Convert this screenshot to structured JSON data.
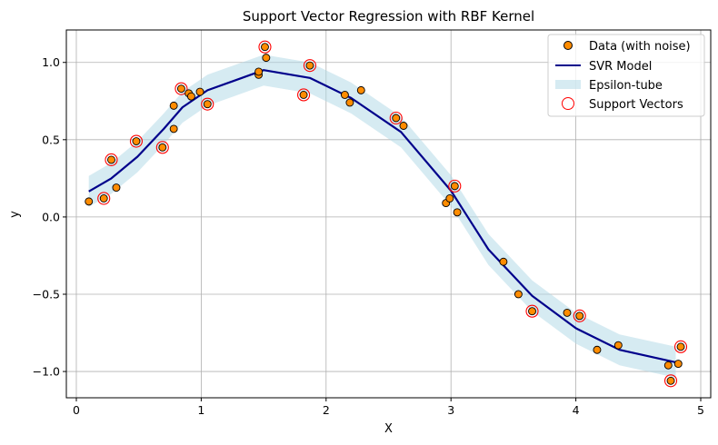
{
  "chart_data": {
    "type": "scatter",
    "title": "Support Vector Regression with RBF Kernel",
    "xlabel": "X",
    "ylabel": "y",
    "xlim": [
      -0.08,
      5.08
    ],
    "ylim": [
      -1.17,
      1.21
    ],
    "xticks": [
      0,
      1,
      2,
      3,
      4,
      5
    ],
    "xtick_labels": [
      "0",
      "1",
      "2",
      "3",
      "4",
      "5"
    ],
    "yticks": [
      -1.0,
      -0.5,
      0.0,
      0.5,
      1.0
    ],
    "ytick_labels": [
      "−1.0",
      "−0.5",
      "0.0",
      "0.5",
      "1.0"
    ],
    "grid": true,
    "legend_position": "top-right",
    "epsilon": 0.1,
    "legend": [
      {
        "label": "Data (with noise)",
        "kind": "marker",
        "color": "#ff8c00"
      },
      {
        "label": "SVR Model",
        "kind": "line",
        "color": "#00008b"
      },
      {
        "label": "Epsilon-tube",
        "kind": "band",
        "color": "#add8e6"
      },
      {
        "label": "Support Vectors",
        "kind": "ring",
        "color": "#ff0000"
      }
    ],
    "colors": {
      "data_fill": "#ff8c00",
      "data_edge": "#000000",
      "model": "#00008b",
      "tube": "#add8e6",
      "support_vector": "#ff0000",
      "grid": "#b0b0b0"
    },
    "series": [
      {
        "name": "SVR Model",
        "x": [
          0.1,
          0.28,
          0.49,
          0.7,
          0.85,
          1.05,
          1.5,
          1.87,
          2.2,
          2.6,
          3.0,
          3.3,
          3.65,
          4.0,
          4.35,
          4.8
        ],
        "y": [
          0.165,
          0.25,
          0.39,
          0.57,
          0.71,
          0.82,
          0.95,
          0.9,
          0.77,
          0.55,
          0.17,
          -0.21,
          -0.51,
          -0.72,
          -0.86,
          -0.94
        ]
      },
      {
        "name": "Data (with noise)",
        "x": [
          0.1,
          0.22,
          0.28,
          0.32,
          0.48,
          0.69,
          0.78,
          0.78,
          0.84,
          0.9,
          0.92,
          0.99,
          1.05,
          1.46,
          1.46,
          1.51,
          1.52,
          1.82,
          1.87,
          2.15,
          2.19,
          2.28,
          2.56,
          2.62,
          2.96,
          2.99,
          3.03,
          3.05,
          3.42,
          3.54,
          3.65,
          3.93,
          4.03,
          4.17,
          4.34,
          4.74,
          4.76,
          4.82,
          4.84
        ],
        "y": [
          0.1,
          0.12,
          0.37,
          0.19,
          0.49,
          0.45,
          0.72,
          0.57,
          0.83,
          0.8,
          0.78,
          0.81,
          0.73,
          0.92,
          0.94,
          1.1,
          1.03,
          0.79,
          0.98,
          0.79,
          0.74,
          0.82,
          0.64,
          0.59,
          0.09,
          0.12,
          0.2,
          0.03,
          -0.29,
          -0.5,
          -0.61,
          -0.62,
          -0.64,
          -0.86,
          -0.83,
          -0.96,
          -1.06,
          -0.95,
          -0.84
        ]
      },
      {
        "name": "Support Vectors",
        "x": [
          0.22,
          0.28,
          0.48,
          0.69,
          0.84,
          1.05,
          1.51,
          1.82,
          1.87,
          2.56,
          3.03,
          3.65,
          4.03,
          4.76,
          4.84
        ],
        "y": [
          0.12,
          0.37,
          0.49,
          0.45,
          0.83,
          0.73,
          1.1,
          0.79,
          0.98,
          0.64,
          0.2,
          -0.61,
          -0.64,
          -1.06,
          -0.84
        ]
      }
    ]
  }
}
